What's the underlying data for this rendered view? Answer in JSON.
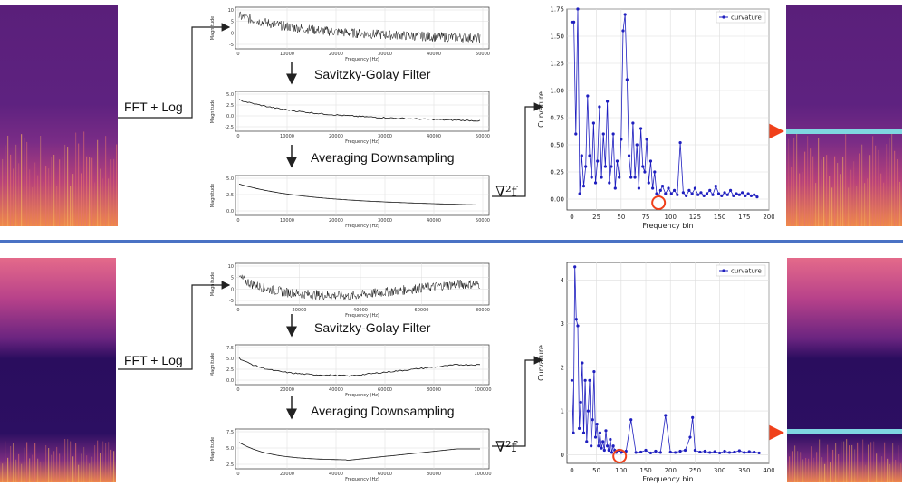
{
  "colors": {
    "divider": "#4a72c4",
    "arrow": "#222222",
    "highlight": "#f0401a",
    "marker": "#7fd6e0",
    "curve": "#1f1fbf"
  },
  "rows": [
    {
      "fft_label": "FFT + Log",
      "step1_label": "Savitzky-Golay Filter",
      "step2_label": "Averaging Downsampling",
      "laplacian_label": "∇²f",
      "raw_plot": {
        "ylabel": "Magnitude",
        "xlabel": "Frequency (Hz)",
        "yticks": [
          "10",
          "5",
          "0",
          "-5"
        ],
        "xticks": [
          "0",
          "10000",
          "20000",
          "30000",
          "40000",
          "50000"
        ]
      },
      "smooth_plot": {
        "ylabel": "Magnitude",
        "xlabel": "Frequency (Hz)",
        "yticks": [
          "5.0",
          "2.5",
          "0.0",
          "-2.5"
        ],
        "xticks": [
          "0",
          "10000",
          "20000",
          "30000",
          "40000",
          "50000"
        ]
      },
      "down_plot": {
        "ylabel": "Magnitude",
        "xlabel": "Frequency (Hz)",
        "yticks": [
          "5.0",
          "2.5",
          "0.0"
        ],
        "xticks": [
          "0",
          "10000",
          "20000",
          "30000",
          "40000",
          "50000"
        ]
      },
      "curvature_chart": {
        "type": "line",
        "legend": "curvature",
        "xlabel": "Frequency bin",
        "ylabel": "Curvature",
        "xticks": [
          "0",
          "25",
          "50",
          "75",
          "100",
          "125",
          "150",
          "175",
          "200"
        ],
        "yticks": [
          "0.00",
          "0.25",
          "0.50",
          "0.75",
          "1.00",
          "1.25",
          "1.50",
          "1.75"
        ],
        "xlim": [
          -5,
          200
        ],
        "ylim": [
          -0.1,
          1.75
        ],
        "highlight_bin": 88
      }
    },
    {
      "fft_label": "FFT + Log",
      "step1_label": "Savitzky-Golay Filter",
      "step2_label": "Averaging Downsampling",
      "laplacian_label": "∇²f",
      "raw_plot": {
        "ylabel": "Magnitude",
        "xlabel": "Frequency (Hz)",
        "yticks": [
          "10",
          "5",
          "0",
          "-5"
        ],
        "xticks": [
          "0",
          "20000",
          "40000",
          "60000",
          "80000"
        ]
      },
      "smooth_plot": {
        "ylabel": "Magnitude",
        "xlabel": "Frequency (Hz)",
        "yticks": [
          "7.5",
          "5.0",
          "2.5",
          "0.0"
        ],
        "xticks": [
          "0",
          "20000",
          "40000",
          "60000",
          "80000",
          "100000"
        ]
      },
      "down_plot": {
        "ylabel": "Magnitude",
        "xlabel": "Frequency (Hz)",
        "yticks": [
          "7.5",
          "5.0",
          "2.5"
        ],
        "xticks": [
          "0",
          "20000",
          "40000",
          "60000",
          "80000",
          "100000"
        ]
      },
      "curvature_chart": {
        "type": "line",
        "legend": "curvature",
        "xlabel": "Frequency bin",
        "ylabel": "Curvature",
        "xticks": [
          "0",
          "50",
          "100",
          "150",
          "200",
          "250",
          "300",
          "350",
          "400"
        ],
        "yticks": [
          "0",
          "1",
          "2",
          "3",
          "4"
        ],
        "xlim": [
          -10,
          400
        ],
        "ylim": [
          -0.2,
          4.4
        ],
        "highlight_bin": 97
      }
    }
  ],
  "chart_data": [
    {
      "type": "line",
      "title": "",
      "xlabel": "Frequency bin",
      "ylabel": "Curvature",
      "xlim": [
        -5,
        200
      ],
      "ylim": [
        -0.1,
        1.75
      ],
      "series": [
        {
          "name": "curvature",
          "x": [
            0,
            2,
            4,
            6,
            8,
            10,
            12,
            14,
            16,
            18,
            20,
            22,
            24,
            26,
            28,
            30,
            32,
            34,
            36,
            38,
            40,
            42,
            44,
            46,
            48,
            50,
            52,
            54,
            56,
            58,
            60,
            62,
            64,
            66,
            68,
            70,
            72,
            74,
            76,
            78,
            80,
            82,
            84,
            86,
            88,
            90,
            92,
            95,
            98,
            101,
            104,
            107,
            110,
            113,
            116,
            119,
            122,
            125,
            128,
            131,
            134,
            137,
            140,
            143,
            146,
            149,
            152,
            155,
            158,
            161,
            164,
            167,
            170,
            173,
            176,
            179,
            182,
            185,
            188
          ],
          "values": [
            1.63,
            1.63,
            0.6,
            1.75,
            0.05,
            0.4,
            0.12,
            0.3,
            0.95,
            0.4,
            0.2,
            0.7,
            0.15,
            0.35,
            0.85,
            0.2,
            0.6,
            0.3,
            0.9,
            0.15,
            0.3,
            0.6,
            0.1,
            0.35,
            0.2,
            0.55,
            1.55,
            1.7,
            1.1,
            0.4,
            0.2,
            0.7,
            0.2,
            0.5,
            0.1,
            0.65,
            0.3,
            0.25,
            0.55,
            0.15,
            0.35,
            0.1,
            0.25,
            0.05,
            0.03,
            0.08,
            0.12,
            0.05,
            0.1,
            0.05,
            0.08,
            0.04,
            0.52,
            0.06,
            0.03,
            0.08,
            0.05,
            0.1,
            0.04,
            0.06,
            0.03,
            0.05,
            0.08,
            0.04,
            0.12,
            0.05,
            0.03,
            0.06,
            0.04,
            0.08,
            0.03,
            0.05,
            0.04,
            0.06,
            0.03,
            0.05,
            0.03,
            0.04,
            0.02
          ]
        }
      ]
    },
    {
      "type": "line",
      "title": "",
      "xlabel": "Frequency bin",
      "ylabel": "Curvature",
      "xlim": [
        -10,
        400
      ],
      "ylim": [
        -0.2,
        4.4
      ],
      "series": [
        {
          "name": "curvature",
          "x": [
            0,
            3,
            6,
            9,
            12,
            15,
            18,
            21,
            24,
            27,
            30,
            33,
            36,
            39,
            42,
            45,
            48,
            51,
            54,
            57,
            60,
            63,
            66,
            69,
            72,
            75,
            78,
            81,
            84,
            87,
            90,
            95,
            100,
            110,
            120,
            130,
            140,
            150,
            160,
            170,
            180,
            190,
            200,
            210,
            220,
            230,
            240,
            245,
            250,
            260,
            270,
            280,
            290,
            300,
            310,
            320,
            330,
            340,
            350,
            360,
            370,
            380
          ],
          "values": [
            1.7,
            0.5,
            4.3,
            3.1,
            2.95,
            0.6,
            1.2,
            2.1,
            0.5,
            1.7,
            0.3,
            1.0,
            1.7,
            0.2,
            0.8,
            1.9,
            0.4,
            0.7,
            0.2,
            0.5,
            0.15,
            0.3,
            0.1,
            0.55,
            0.2,
            0.1,
            0.35,
            0.05,
            0.2,
            0.1,
            0.05,
            0.1,
            0.05,
            0.08,
            0.8,
            0.05,
            0.06,
            0.1,
            0.04,
            0.08,
            0.05,
            0.9,
            0.06,
            0.05,
            0.08,
            0.1,
            0.4,
            0.85,
            0.1,
            0.06,
            0.08,
            0.05,
            0.07,
            0.04,
            0.08,
            0.05,
            0.06,
            0.09,
            0.05,
            0.07,
            0.06,
            0.04
          ]
        }
      ]
    }
  ]
}
